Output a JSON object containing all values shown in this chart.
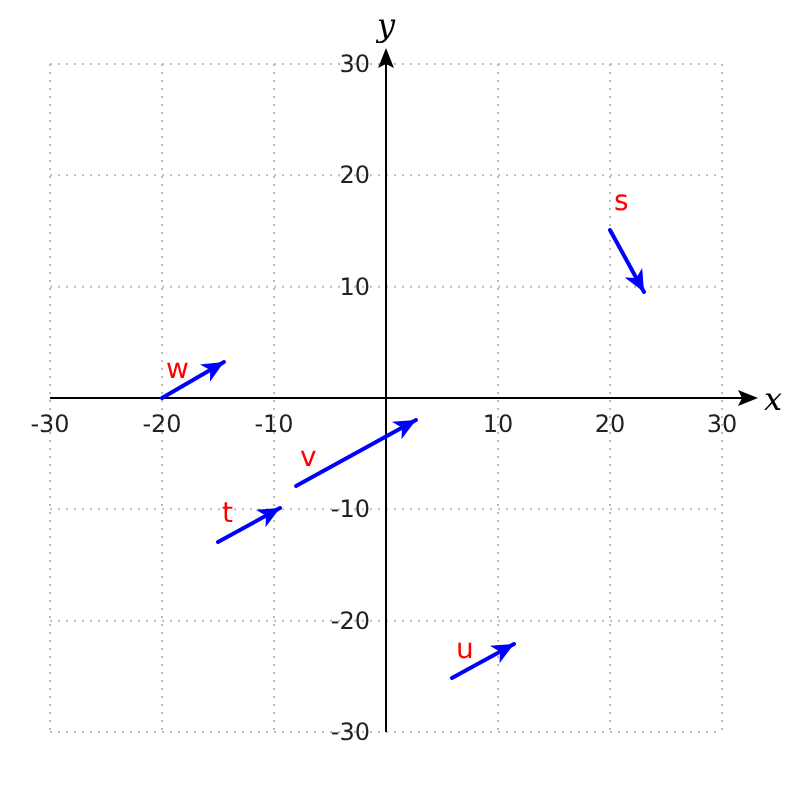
{
  "chart_data": {
    "type": "line",
    "xlabel": "x",
    "ylabel": "y",
    "xlim": [
      -30,
      30
    ],
    "ylim": [
      -30,
      30
    ],
    "xticks": [
      -30,
      -20,
      -10,
      10,
      20,
      30
    ],
    "yticks": [
      -30,
      -20,
      -10,
      10,
      20,
      30
    ],
    "grid": true,
    "annotations": [
      "s",
      "t",
      "u",
      "v",
      "w"
    ]
  }
}
